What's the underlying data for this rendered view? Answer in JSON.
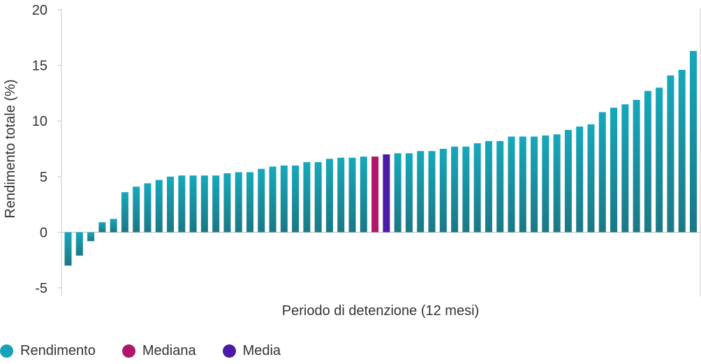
{
  "chart_data": {
    "type": "bar",
    "title": "",
    "xlabel": "Periodo di detenzione (12 mesi)",
    "ylabel": "Rendimento totale (%)",
    "ylim": [
      -5,
      20
    ],
    "yticks": [
      -5,
      0,
      5,
      10,
      15,
      20
    ],
    "ytick_labels": [
      "-5",
      "0",
      "5",
      "10",
      "15",
      "20"
    ],
    "grid": false,
    "values": [
      -3.0,
      -2.1,
      -0.8,
      0.9,
      1.2,
      3.6,
      4.1,
      4.4,
      4.7,
      5.0,
      5.1,
      5.1,
      5.1,
      5.1,
      5.3,
      5.4,
      5.4,
      5.7,
      5.9,
      6.0,
      6.0,
      6.3,
      6.3,
      6.6,
      6.7,
      6.7,
      6.8,
      6.8,
      7.0,
      7.1,
      7.1,
      7.3,
      7.3,
      7.5,
      7.7,
      7.7,
      8.0,
      8.2,
      8.2,
      8.6,
      8.6,
      8.6,
      8.7,
      8.8,
      9.2,
      9.5,
      9.7,
      10.8,
      11.2,
      11.5,
      11.9,
      12.7,
      13.0,
      14.1,
      14.6,
      16.3
    ],
    "highlight": {
      "median_index": 27,
      "mean_index": 28
    },
    "colors": {
      "rendimento": "#16a2b8",
      "rendimento_dark": "#1a7a86",
      "mediana": "#b0166a",
      "media": "#4a1aa8",
      "axis": "#c8c8c8",
      "zero_line": "#bdbdbd"
    },
    "legend": [
      {
        "label": "Rendimento",
        "color": "#16a2b8"
      },
      {
        "label": "Mediana",
        "color": "#b0166a"
      },
      {
        "label": "Media",
        "color": "#4a1aa8"
      }
    ]
  }
}
